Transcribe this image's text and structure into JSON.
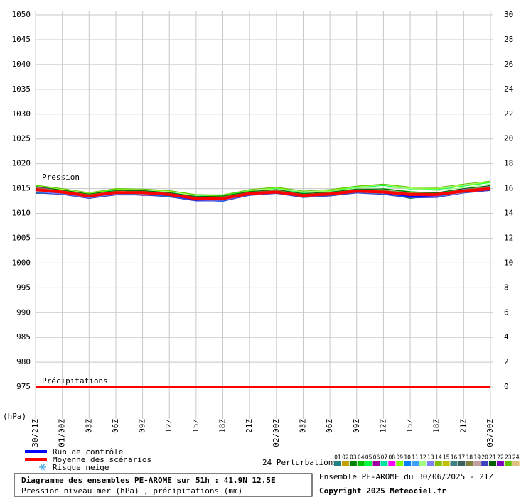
{
  "chart_data": {
    "type": "line",
    "categories": [
      "30/21Z",
      "01/00Z",
      "03Z",
      "06Z",
      "09Z",
      "12Z",
      "15Z",
      "18Z",
      "21Z",
      "02/00Z",
      "03Z",
      "06Z",
      "09Z",
      "12Z",
      "15Z",
      "18Z",
      "21Z",
      "03/00Z"
    ],
    "ylim": [
      970,
      1050
    ],
    "yticks": [
      975,
      980,
      985,
      990,
      995,
      1000,
      1005,
      1010,
      1015,
      1020,
      1025,
      1030,
      1035,
      1040,
      1045,
      1050
    ],
    "y2lim": [
      -2,
      30
    ],
    "y2ticks": [
      0,
      2,
      4,
      6,
      8,
      10,
      12,
      14,
      16,
      18,
      20,
      22,
      24,
      26,
      28,
      30
    ],
    "y_unit": "(hPa)",
    "pressure_label": "Pression",
    "precip_label": "Précipitations",
    "grid": true,
    "control": {
      "name": "Run de contrôle",
      "color": "#0000ff",
      "values": [
        1015.0,
        1014.2,
        1013.4,
        1014.1,
        1014.1,
        1013.6,
        1012.7,
        1012.8,
        1013.9,
        1014.3,
        1013.5,
        1013.8,
        1014.4,
        1014.1,
        1013.4,
        1013.6,
        1014.6,
        1015.0
      ]
    },
    "mean": {
      "name": "Moyenne des scénarios",
      "color": "#ff0000",
      "values": [
        1014.8,
        1014.3,
        1013.5,
        1014.2,
        1014.2,
        1013.8,
        1013.0,
        1013.0,
        1014.0,
        1014.3,
        1013.6,
        1013.9,
        1014.5,
        1014.3,
        1013.8,
        1013.8,
        1014.5,
        1015.0
      ]
    },
    "precipitation": {
      "color": "#ff0000",
      "axis": "y2",
      "values": [
        0,
        0,
        0,
        0,
        0,
        0,
        0,
        0,
        0,
        0,
        0,
        0,
        0,
        0,
        0,
        0,
        0,
        0
      ]
    },
    "snow_legend": "Risque neige",
    "perturbations_title": "24 Perturbations",
    "series": [
      {
        "name": "01",
        "color": "#208080",
        "values": [
          1014.5,
          1014.0,
          1013.2,
          1014.0,
          1014.5,
          1013.5,
          1012.8,
          1012.5,
          1014.2,
          1014.5,
          1013.4,
          1013.8,
          1014.6,
          1014.0,
          1013.3,
          1013.5,
          1014.8,
          1015.4
        ]
      },
      {
        "name": "02",
        "color": "#c0a000",
        "values": [
          1015.2,
          1014.6,
          1013.8,
          1014.5,
          1014.0,
          1014.0,
          1013.3,
          1013.4,
          1014.3,
          1014.0,
          1013.8,
          1014.2,
          1014.8,
          1014.6,
          1014.2,
          1014.0,
          1014.2,
          1014.6
        ]
      },
      {
        "name": "03",
        "color": "#008000",
        "values": [
          1014.0,
          1014.2,
          1013.0,
          1013.9,
          1013.8,
          1013.5,
          1012.6,
          1012.8,
          1013.8,
          1014.4,
          1013.2,
          1013.6,
          1014.3,
          1014.1,
          1013.0,
          1013.6,
          1014.6,
          1015.6
        ]
      },
      {
        "name": "04",
        "color": "#00c000",
        "values": [
          1015.0,
          1014.5,
          1013.7,
          1014.3,
          1014.6,
          1013.9,
          1013.2,
          1013.3,
          1014.1,
          1014.8,
          1013.9,
          1014.1,
          1014.7,
          1015.0,
          1014.4,
          1014.1,
          1015.0,
          1015.3
        ]
      },
      {
        "name": "05",
        "color": "#00ff40",
        "values": [
          1015.5,
          1014.4,
          1013.9,
          1014.8,
          1014.4,
          1014.3,
          1013.5,
          1013.6,
          1014.6,
          1015.0,
          1014.2,
          1014.5,
          1015.2,
          1015.6,
          1014.9,
          1014.8,
          1015.5,
          1016.2
        ]
      },
      {
        "name": "06",
        "color": "#a000a0",
        "values": [
          1014.3,
          1014.1,
          1013.4,
          1014.0,
          1013.6,
          1013.6,
          1012.9,
          1012.7,
          1013.9,
          1014.1,
          1013.5,
          1013.7,
          1014.4,
          1014.2,
          1013.5,
          1013.4,
          1014.3,
          1014.7
        ]
      },
      {
        "name": "07",
        "color": "#00e0a0",
        "values": [
          1014.9,
          1014.3,
          1013.6,
          1014.4,
          1014.2,
          1013.7,
          1013.1,
          1013.2,
          1014.0,
          1014.6,
          1013.7,
          1014.0,
          1014.5,
          1014.4,
          1013.9,
          1013.9,
          1014.6,
          1015.1
        ]
      },
      {
        "name": "08",
        "color": "#ff00ff",
        "values": [
          1015.3,
          1014.7,
          1013.5,
          1014.1,
          1014.3,
          1014.1,
          1013.4,
          1012.9,
          1014.2,
          1014.2,
          1013.6,
          1013.9,
          1014.6,
          1014.3,
          1014.0,
          1013.7,
          1014.9,
          1015.2
        ]
      },
      {
        "name": "09",
        "color": "#80ff00",
        "values": [
          1015.6,
          1014.8,
          1014.0,
          1014.9,
          1014.7,
          1014.5,
          1013.7,
          1013.5,
          1014.5,
          1015.2,
          1014.3,
          1014.6,
          1015.4,
          1015.8,
          1015.1,
          1015.0,
          1015.7,
          1016.3
        ]
      },
      {
        "name": "10",
        "color": "#0080ff",
        "values": [
          1014.2,
          1014.0,
          1013.3,
          1013.8,
          1013.9,
          1013.4,
          1012.7,
          1012.4,
          1013.7,
          1014.3,
          1013.3,
          1013.5,
          1014.2,
          1013.9,
          1013.2,
          1013.3,
          1014.4,
          1014.9
        ]
      },
      {
        "name": "11",
        "color": "#40a0ff",
        "values": [
          1014.7,
          1014.2,
          1013.4,
          1014.1,
          1014.1,
          1013.7,
          1012.9,
          1013.0,
          1013.9,
          1014.4,
          1013.5,
          1013.8,
          1014.4,
          1014.2,
          1013.6,
          1013.7,
          1014.5,
          1015.0
        ]
      },
      {
        "name": "12",
        "color": "#a0ff80",
        "values": [
          1015.1,
          1014.5,
          1013.8,
          1014.6,
          1014.8,
          1014.2,
          1013.6,
          1013.8,
          1014.7,
          1014.9,
          1014.4,
          1014.4,
          1015.1,
          1015.3,
          1015.0,
          1014.6,
          1015.2,
          1015.9
        ]
      },
      {
        "name": "13",
        "color": "#8080ff",
        "values": [
          1014.4,
          1013.9,
          1013.1,
          1013.9,
          1014.0,
          1013.6,
          1012.6,
          1012.6,
          1013.8,
          1014.2,
          1013.4,
          1013.7,
          1014.3,
          1014.1,
          1013.4,
          1013.5,
          1014.7,
          1015.5
        ]
      },
      {
        "name": "14",
        "color": "#80c000",
        "values": [
          1014.9,
          1014.4,
          1013.7,
          1014.3,
          1014.3,
          1013.9,
          1013.2,
          1013.1,
          1014.1,
          1014.5,
          1013.8,
          1014.0,
          1014.6,
          1014.5,
          1013.9,
          1013.9,
          1014.6,
          1015.1
        ]
      },
      {
        "name": "15",
        "color": "#c0c000",
        "values": [
          1015.0,
          1014.6,
          1013.6,
          1014.2,
          1014.4,
          1014.0,
          1013.0,
          1013.2,
          1014.2,
          1014.3,
          1013.7,
          1014.0,
          1014.7,
          1014.4,
          1014.0,
          1013.8,
          1014.4,
          1014.8
        ]
      },
      {
        "name": "16",
        "color": "#408080",
        "values": [
          1014.6,
          1014.1,
          1013.3,
          1014.0,
          1014.0,
          1013.6,
          1012.8,
          1012.9,
          1013.9,
          1014.3,
          1013.5,
          1013.8,
          1014.4,
          1014.2,
          1013.6,
          1013.6,
          1014.4,
          1014.9
        ]
      },
      {
        "name": "17",
        "color": "#406060",
        "values": [
          1014.8,
          1014.3,
          1013.5,
          1014.2,
          1014.1,
          1013.8,
          1013.0,
          1013.0,
          1014.0,
          1014.4,
          1013.6,
          1013.9,
          1014.5,
          1014.3,
          1013.8,
          1013.8,
          1014.5,
          1015.0
        ]
      },
      {
        "name": "18",
        "color": "#808040",
        "values": [
          1015.2,
          1014.4,
          1013.6,
          1014.3,
          1014.5,
          1014.0,
          1013.1,
          1013.3,
          1014.3,
          1014.7,
          1013.8,
          1014.1,
          1014.8,
          1014.7,
          1014.1,
          1014.0,
          1014.8,
          1015.4
        ]
      },
      {
        "name": "19",
        "color": "#c0a0a0",
        "values": [
          1014.5,
          1014.2,
          1013.4,
          1014.1,
          1013.9,
          1013.7,
          1012.9,
          1012.8,
          1013.9,
          1014.2,
          1013.5,
          1013.7,
          1014.3,
          1014.0,
          1013.6,
          1013.6,
          1014.3,
          1014.8
        ]
      },
      {
        "name": "20",
        "color": "#4040c0",
        "values": [
          1014.1,
          1013.8,
          1013.0,
          1013.7,
          1013.7,
          1013.3,
          1012.5,
          1012.5,
          1013.6,
          1014.0,
          1013.2,
          1013.5,
          1014.1,
          1013.8,
          1013.1,
          1013.2,
          1014.1,
          1014.6
        ]
      },
      {
        "name": "21",
        "color": "#006000",
        "values": [
          1015.4,
          1014.7,
          1013.9,
          1014.6,
          1014.6,
          1014.2,
          1013.4,
          1013.5,
          1014.4,
          1014.8,
          1014.0,
          1014.3,
          1014.9,
          1014.9,
          1014.3,
          1014.2,
          1015.0,
          1015.6
        ]
      },
      {
        "name": "22",
        "color": "#8000c0",
        "values": [
          1014.7,
          1014.3,
          1013.5,
          1014.1,
          1014.2,
          1013.7,
          1013.0,
          1012.9,
          1014.0,
          1014.3,
          1013.6,
          1013.8,
          1014.5,
          1014.3,
          1013.7,
          1013.7,
          1014.6,
          1015.2
        ]
      },
      {
        "name": "23",
        "color": "#60c000",
        "values": [
          1015.7,
          1015.0,
          1014.2,
          1015.0,
          1014.9,
          1014.6,
          1013.8,
          1013.7,
          1014.8,
          1015.3,
          1014.5,
          1014.8,
          1015.5,
          1015.9,
          1015.3,
          1015.2,
          1015.9,
          1016.5
        ]
      },
      {
        "name": "24",
        "color": "#e0c080",
        "values": [
          1014.9,
          1014.4,
          1013.6,
          1014.3,
          1014.3,
          1013.9,
          1013.1,
          1013.1,
          1014.1,
          1014.5,
          1013.7,
          1014.0,
          1014.6,
          1014.4,
          1013.9,
          1013.9,
          1014.7,
          1015.2
        ]
      }
    ]
  },
  "footer": {
    "title": "Diagramme des ensembles PE-AROME sur 51h : 41.9N 12.5E",
    "subtitle": "Pression niveau mer (hPa) , précipitations (mm)",
    "run": "Ensemble PE-AROME du 30/06/2025 - 21Z",
    "copyright": "Copyright 2025 Meteociel.fr"
  }
}
